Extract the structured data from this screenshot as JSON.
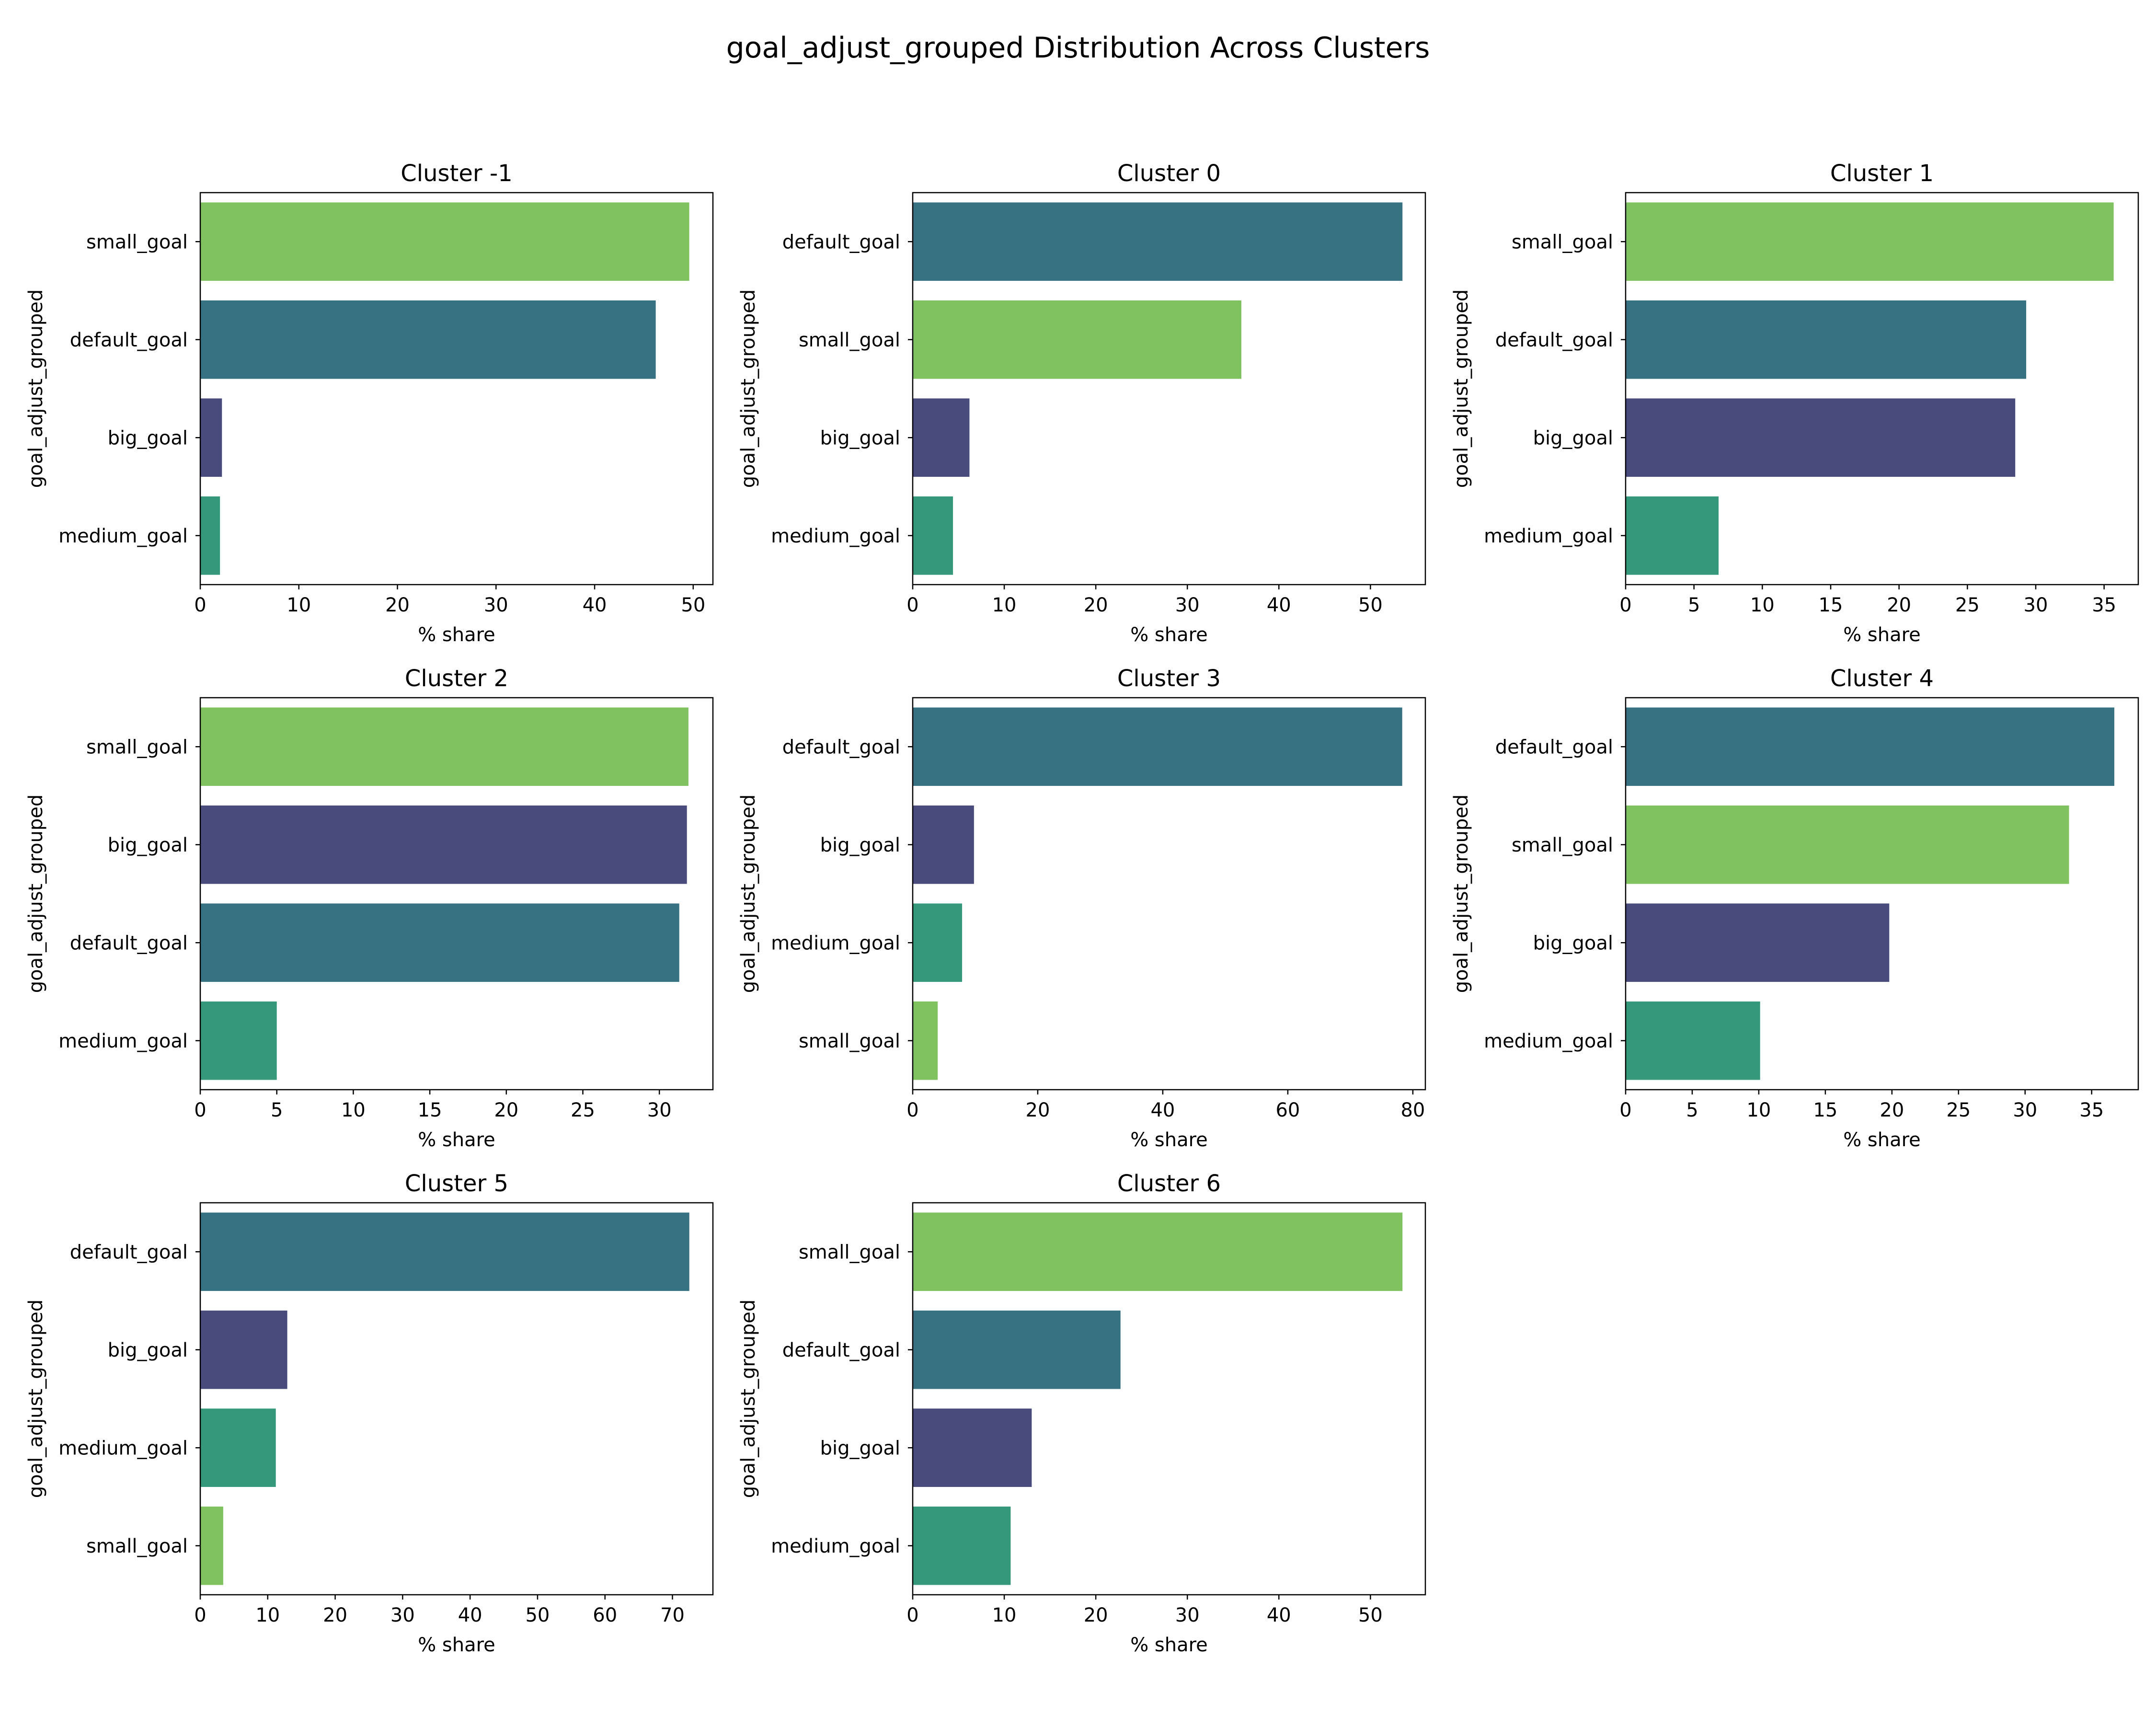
{
  "figure_title": "goal_adjust_grouped Distribution Across Clusters",
  "colors": {
    "small_goal": "#7fc25f",
    "default_goal": "#367282",
    "big_goal": "#4a4b7d",
    "medium_goal": "#35987a"
  },
  "chart_data": [
    {
      "type": "bar",
      "orientation": "horizontal",
      "title": "Cluster -1",
      "xlabel": "% share",
      "ylabel": "goal_adjust_grouped",
      "categories": [
        "small_goal",
        "default_goal",
        "big_goal",
        "medium_goal"
      ],
      "values": [
        49.6,
        46.2,
        2.2,
        2.0
      ],
      "xlim": [
        0,
        52
      ],
      "xticks": [
        0,
        10,
        20,
        30,
        40,
        50
      ]
    },
    {
      "type": "bar",
      "orientation": "horizontal",
      "title": "Cluster 0",
      "xlabel": "% share",
      "ylabel": "goal_adjust_grouped",
      "categories": [
        "default_goal",
        "small_goal",
        "big_goal",
        "medium_goal"
      ],
      "values": [
        53.5,
        35.9,
        6.2,
        4.4
      ],
      "xlim": [
        0,
        56
      ],
      "xticks": [
        0,
        10,
        20,
        30,
        40,
        50
      ]
    },
    {
      "type": "bar",
      "orientation": "horizontal",
      "title": "Cluster 1",
      "xlabel": "% share",
      "ylabel": "goal_adjust_grouped",
      "categories": [
        "small_goal",
        "default_goal",
        "big_goal",
        "medium_goal"
      ],
      "values": [
        35.7,
        29.3,
        28.5,
        6.8
      ],
      "xlim": [
        0,
        37.5
      ],
      "xticks": [
        0,
        5,
        10,
        15,
        20,
        25,
        30,
        35
      ]
    },
    {
      "type": "bar",
      "orientation": "horizontal",
      "title": "Cluster 2",
      "xlabel": "% share",
      "ylabel": "goal_adjust_grouped",
      "categories": [
        "small_goal",
        "big_goal",
        "default_goal",
        "medium_goal"
      ],
      "values": [
        31.9,
        31.8,
        31.3,
        5.0
      ],
      "xlim": [
        0,
        33.5
      ],
      "xticks": [
        0,
        5,
        10,
        15,
        20,
        25,
        30
      ]
    },
    {
      "type": "bar",
      "orientation": "horizontal",
      "title": "Cluster 3",
      "xlabel": "% share",
      "ylabel": "goal_adjust_grouped",
      "categories": [
        "default_goal",
        "big_goal",
        "medium_goal",
        "small_goal"
      ],
      "values": [
        78.3,
        9.8,
        7.9,
        4.0
      ],
      "xlim": [
        0,
        82
      ],
      "xticks": [
        0,
        20,
        40,
        60,
        80
      ]
    },
    {
      "type": "bar",
      "orientation": "horizontal",
      "title": "Cluster 4",
      "xlabel": "% share",
      "ylabel": "goal_adjust_grouped",
      "categories": [
        "default_goal",
        "small_goal",
        "big_goal",
        "medium_goal"
      ],
      "values": [
        36.7,
        33.3,
        19.8,
        10.1
      ],
      "xlim": [
        0,
        38.5
      ],
      "xticks": [
        0,
        5,
        10,
        15,
        20,
        25,
        30,
        35
      ]
    },
    {
      "type": "bar",
      "orientation": "horizontal",
      "title": "Cluster 5",
      "xlabel": "% share",
      "ylabel": "goal_adjust_grouped",
      "categories": [
        "default_goal",
        "big_goal",
        "medium_goal",
        "small_goal"
      ],
      "values": [
        72.5,
        12.9,
        11.2,
        3.4
      ],
      "xlim": [
        0,
        76
      ],
      "xticks": [
        0,
        10,
        20,
        30,
        40,
        50,
        60,
        70
      ]
    },
    {
      "type": "bar",
      "orientation": "horizontal",
      "title": "Cluster 6",
      "xlabel": "% share",
      "ylabel": "goal_adjust_grouped",
      "categories": [
        "small_goal",
        "default_goal",
        "big_goal",
        "medium_goal"
      ],
      "values": [
        53.5,
        22.7,
        13.0,
        10.7
      ],
      "xlim": [
        0,
        56
      ],
      "xticks": [
        0,
        10,
        20,
        30,
        40,
        50
      ]
    }
  ]
}
